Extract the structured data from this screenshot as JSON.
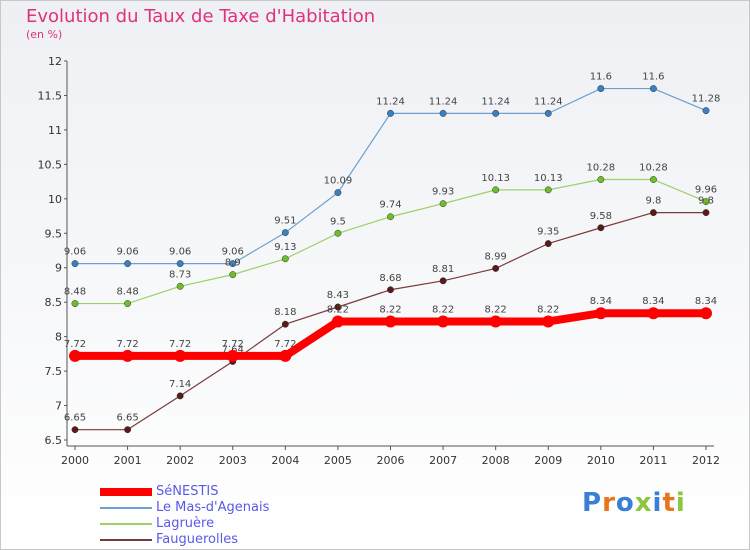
{
  "title": "Evolution du Taux de Taxe d'Habitation",
  "subtitle": "(en %)",
  "logo": {
    "text": "Proxiti",
    "letters": [
      {
        "ch": "P",
        "color": "#3a7fd5"
      },
      {
        "ch": "r",
        "color": "#e8741e"
      },
      {
        "ch": "o",
        "color": "#3a7fd5"
      },
      {
        "ch": "x",
        "color": "#8cc63f"
      },
      {
        "ch": "i",
        "color": "#3a7fd5"
      },
      {
        "ch": "t",
        "color": "#e8741e"
      },
      {
        "ch": "i",
        "color": "#8cc63f"
      }
    ]
  },
  "chart_data": {
    "type": "line",
    "title": "Evolution du Taux de Taxe d'Habitation",
    "subtitle": "(en %)",
    "x": [
      "2000",
      "2001",
      "2002",
      "2003",
      "2004",
      "2005",
      "2006",
      "2007",
      "2008",
      "2009",
      "2010",
      "2011",
      "2012"
    ],
    "ylim": [
      6.5,
      12
    ],
    "yticks": [
      "6.5",
      "7",
      "7.5",
      "8",
      "8.5",
      "9",
      "9.5",
      "10",
      "10.5",
      "11",
      "11.5",
      "12"
    ],
    "grid": false,
    "legend_position": "bottom-left",
    "series": [
      {
        "name": "Le Mas-d'Agenais",
        "color": "#6e9fd2",
        "marker": "#3a7fc0",
        "width": 1.2,
        "values": [
          9.06,
          9.06,
          9.06,
          9.06,
          9.51,
          10.09,
          11.24,
          11.24,
          11.24,
          11.24,
          11.6,
          11.6,
          11.28
        ],
        "labels": [
          "9.06",
          "9.06",
          "9.06",
          "9.06",
          "9.51",
          "10.09",
          "11.24",
          "11.24",
          "11.24",
          "11.24",
          "11.6",
          "11.6",
          "11.28"
        ]
      },
      {
        "name": "Lagruère",
        "color": "#9ed06a",
        "marker": "#6cbf2a",
        "width": 1.2,
        "values": [
          8.48,
          8.48,
          8.73,
          8.9,
          9.13,
          9.5,
          9.74,
          9.93,
          10.13,
          10.13,
          10.28,
          10.28,
          9.96
        ],
        "labels": [
          "8.48",
          "8.48",
          "8.73",
          "8.9",
          "9.13",
          "9.5",
          "9.74",
          "9.93",
          "10.13",
          "10.13",
          "10.28",
          "10.28",
          "9.96"
        ]
      },
      {
        "name": "Fauguerolles",
        "color": "#7a3a3a",
        "marker": "#5a1a1a",
        "width": 1.2,
        "values": [
          6.65,
          6.65,
          7.14,
          7.64,
          8.18,
          8.43,
          8.68,
          8.81,
          8.99,
          9.35,
          9.58,
          9.8,
          9.8
        ],
        "labels": [
          "6.65",
          "6.65",
          "7.14",
          "7.64",
          "8.18",
          "8.43",
          "8.68",
          "8.81",
          "8.99",
          "9.35",
          "9.58",
          "9.8",
          "9.8"
        ]
      },
      {
        "name": "SéNESTIS",
        "color": "#ff0000",
        "marker": "#ff0000",
        "width": 8,
        "values": [
          7.72,
          7.72,
          7.72,
          7.72,
          7.72,
          8.22,
          8.22,
          8.22,
          8.22,
          8.22,
          8.34,
          8.34,
          8.34
        ],
        "labels": [
          "7.72",
          "7.72",
          "7.72",
          "7.72",
          "7.72",
          "8.22",
          "8.22",
          "8.22",
          "8.22",
          "8.22",
          "8.34",
          "8.34",
          "8.34"
        ]
      }
    ],
    "legend": [
      {
        "name": "SéNESTIS",
        "color": "#ff0000",
        "width": 8
      },
      {
        "name": "Le Mas-d'Agenais",
        "color": "#6e9fd2",
        "width": 2
      },
      {
        "name": "Lagruère",
        "color": "#9ed06a",
        "width": 2
      },
      {
        "name": "Fauguerolles",
        "color": "#7a3a3a",
        "width": 2
      }
    ]
  }
}
